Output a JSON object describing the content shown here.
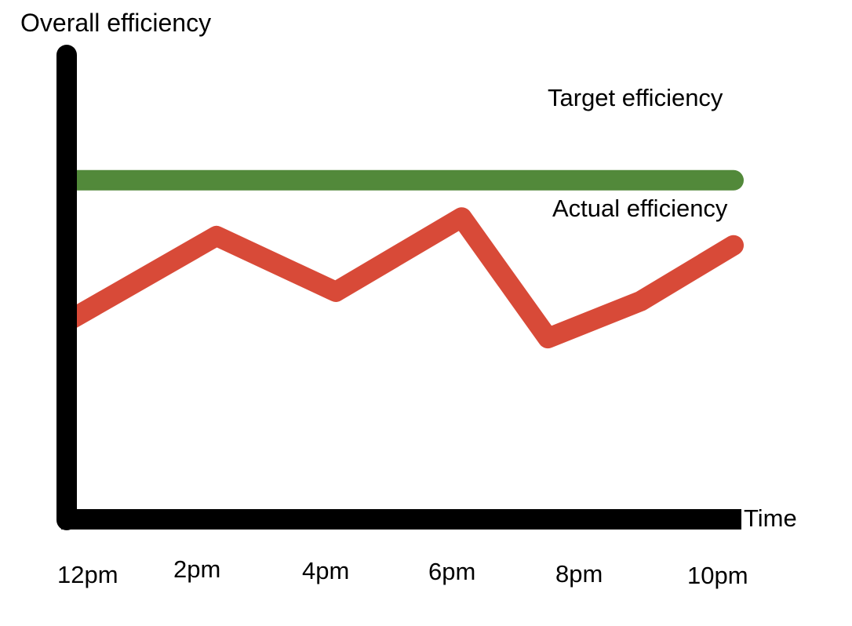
{
  "chart_data": {
    "type": "line",
    "title": "",
    "ylabel": "Overall efficiency",
    "xlabel": "Time",
    "x_ticks": [
      "12pm",
      "2pm",
      "4pm",
      "6pm",
      "8pm",
      "10pm"
    ],
    "xlim": [
      12,
      22
    ],
    "ylim": [
      0,
      100
    ],
    "grid": false,
    "series": [
      {
        "name": "Target efficiency",
        "color": "#52893a",
        "x": [
          12,
          22
        ],
        "y": [
          73,
          73
        ]
      },
      {
        "name": "Actual efficiency",
        "color": "#d84a38",
        "x": [
          12,
          14.2,
          16,
          17.9,
          19.2,
          20.6,
          22
        ],
        "y": [
          43,
          61,
          49,
          65,
          39,
          47,
          59
        ]
      }
    ]
  }
}
